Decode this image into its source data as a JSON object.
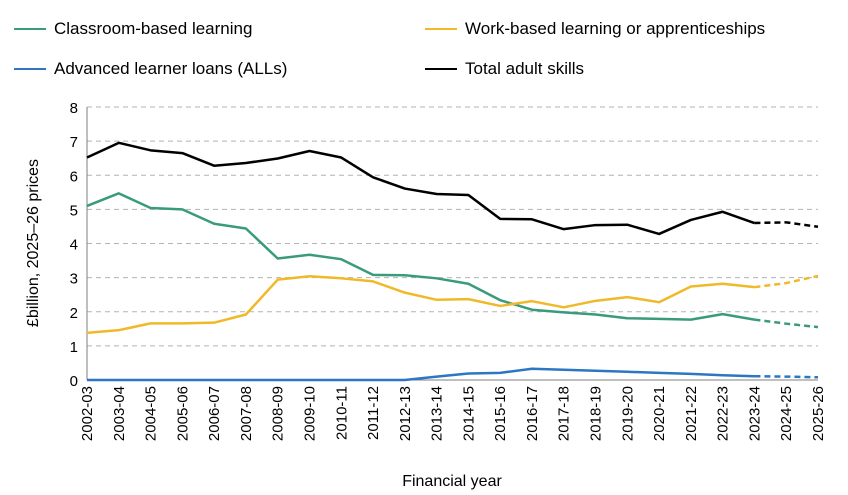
{
  "chart_data": {
    "type": "line",
    "xlabel": "Financial year",
    "ylabel": "£billion, 2025–26 prices",
    "ylim": [
      0,
      8
    ],
    "yticks": [
      0,
      1,
      2,
      3,
      4,
      5,
      6,
      7,
      8
    ],
    "grid": "horizontal dashed",
    "legend_position": "top",
    "categories": [
      "2002-03",
      "2003-04",
      "2004-05",
      "2005-06",
      "2006-07",
      "2007-08",
      "2008-09",
      "2009-10",
      "2010-11",
      "2011-12",
      "2012-13",
      "2013-14",
      "2014-15",
      "2015-16",
      "2016-17",
      "2017-18",
      "2018-19",
      "2019-20",
      "2020-21",
      "2021-22",
      "2022-23",
      "2023-24",
      "2024-25",
      "2025-26"
    ],
    "projection_start_category": "2023-24",
    "series": [
      {
        "name": "Classroom-based learning",
        "color": "#3a9b7a",
        "values": [
          5.1,
          5.47,
          5.04,
          5.0,
          4.58,
          4.44,
          3.56,
          3.67,
          3.54,
          3.08,
          3.07,
          2.98,
          2.82,
          2.34,
          2.06,
          1.98,
          1.92,
          1.81,
          1.79,
          1.77,
          1.93,
          1.77,
          1.65,
          1.55
        ]
      },
      {
        "name": "Work-based learning or apprenticeships",
        "color": "#f0b929",
        "values": [
          1.38,
          1.46,
          1.66,
          1.66,
          1.68,
          1.92,
          2.94,
          3.04,
          2.98,
          2.89,
          2.56,
          2.35,
          2.37,
          2.17,
          2.31,
          2.13,
          2.32,
          2.43,
          2.28,
          2.74,
          2.82,
          2.72,
          2.84,
          3.05
        ]
      },
      {
        "name": "Advanced learner loans (ALLs)",
        "color": "#2d77c2",
        "values": [
          0,
          0,
          0,
          0,
          0,
          0,
          0,
          0,
          0,
          0,
          0,
          0.1,
          0.19,
          0.21,
          0.33,
          0.3,
          0.27,
          0.24,
          0.21,
          0.18,
          0.14,
          0.11,
          0.1,
          0.08
        ]
      },
      {
        "name": "Total adult skills",
        "color": "#000000",
        "values": [
          6.52,
          6.95,
          6.73,
          6.65,
          6.28,
          6.36,
          6.49,
          6.71,
          6.52,
          5.94,
          5.61,
          5.45,
          5.42,
          4.72,
          4.71,
          4.42,
          4.54,
          4.55,
          4.28,
          4.69,
          4.93,
          4.6,
          4.62,
          4.49
        ]
      }
    ]
  }
}
